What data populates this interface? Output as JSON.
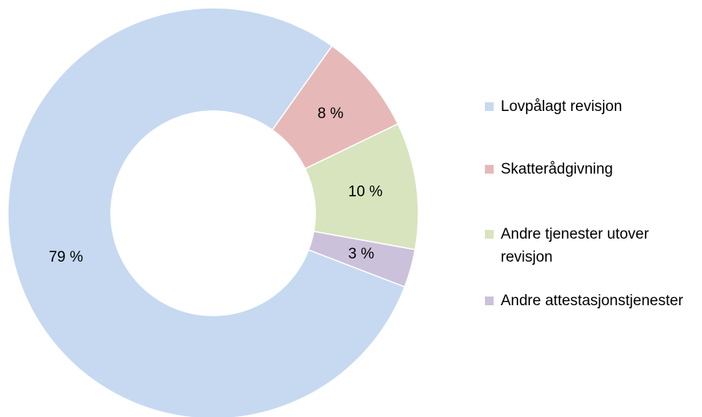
{
  "chart_data": {
    "type": "donut",
    "categories": [
      "Lovpålagt revisjon",
      "Skatterådgivning",
      "Andre tjenester utover revisjon",
      "Andre attestasjonstjenester"
    ],
    "values": [
      79,
      8,
      10,
      3
    ],
    "value_labels": [
      "79 %",
      "8 %",
      "10 %",
      "3 %"
    ],
    "colors": [
      "#c6d9f1",
      "#e6b9b8",
      "#d7e4bd",
      "#ccc1da"
    ],
    "legend": "right"
  }
}
